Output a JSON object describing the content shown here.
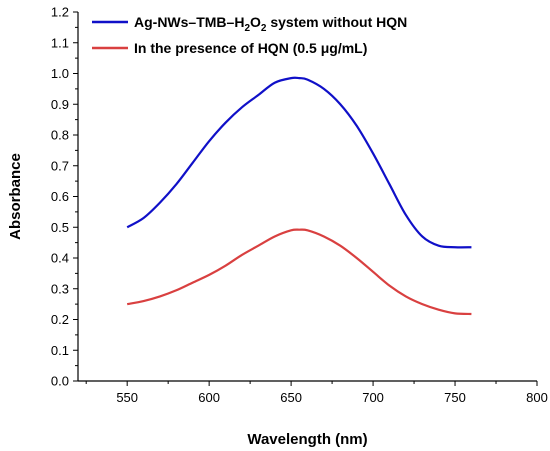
{
  "chart_data": {
    "type": "line",
    "title": "",
    "xlabel": "Wavelength (nm)",
    "ylabel": "Absorbance",
    "xlim": [
      520,
      800
    ],
    "ylim": [
      0.0,
      1.2
    ],
    "xticks": [
      "550",
      "600",
      "650",
      "700",
      "750",
      "800"
    ],
    "yticks": [
      "0.0",
      "0.1",
      "0.2",
      "0.3",
      "0.4",
      "0.5",
      "0.6",
      "0.7",
      "0.8",
      "0.9",
      "1.0",
      "1.1",
      "1.2"
    ],
    "grid": false,
    "legend_position": "top-left",
    "series": [
      {
        "name": "Ag-NWs–TMB–H2O2 system without HQN",
        "legend_parts": [
          "Ag-NWs–TMB–H",
          "2",
          "O",
          "2",
          " system without HQN"
        ],
        "color": "#1010c8",
        "x": [
          550,
          560,
          570,
          580,
          590,
          600,
          610,
          620,
          630,
          640,
          650,
          655,
          660,
          670,
          680,
          690,
          700,
          710,
          720,
          730,
          740,
          750,
          760
        ],
        "y": [
          0.5,
          0.53,
          0.58,
          0.64,
          0.71,
          0.78,
          0.84,
          0.89,
          0.93,
          0.97,
          0.985,
          0.985,
          0.98,
          0.95,
          0.9,
          0.83,
          0.74,
          0.64,
          0.54,
          0.47,
          0.44,
          0.435,
          0.435
        ]
      },
      {
        "name": "In the presence of HQN (0.5 μg/mL)",
        "legend_parts": [
          "In the presence of HQN (0.5 μg/mL)"
        ],
        "color": "#d94040",
        "x": [
          550,
          560,
          570,
          580,
          590,
          600,
          610,
          620,
          630,
          640,
          650,
          655,
          660,
          670,
          680,
          690,
          700,
          710,
          720,
          730,
          740,
          750,
          760
        ],
        "y": [
          0.25,
          0.26,
          0.275,
          0.295,
          0.32,
          0.345,
          0.375,
          0.41,
          0.44,
          0.47,
          0.49,
          0.492,
          0.49,
          0.47,
          0.44,
          0.4,
          0.355,
          0.31,
          0.275,
          0.25,
          0.232,
          0.22,
          0.218
        ]
      }
    ]
  }
}
